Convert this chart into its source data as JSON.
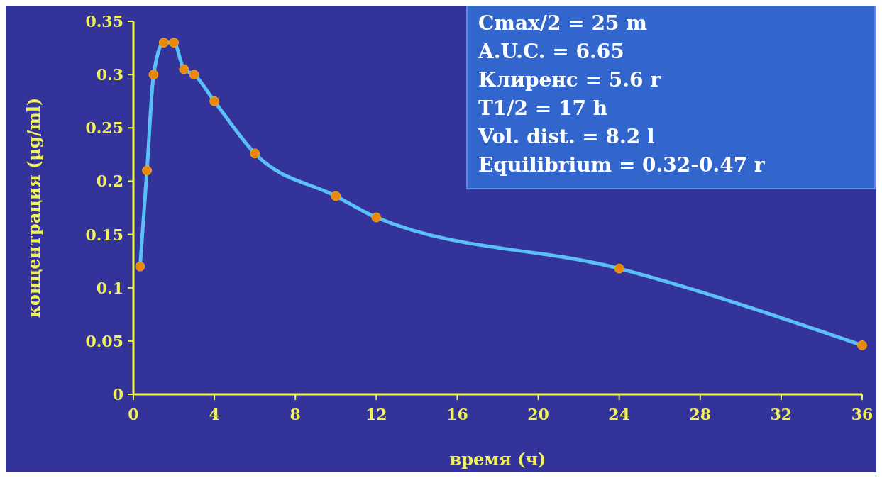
{
  "chart_data": {
    "type": "line",
    "xlabel": "время (ч)",
    "ylabel": "концентрация (µg/ml)",
    "x": [
      0.33,
      0.67,
      1,
      1.5,
      2,
      2.5,
      3,
      4,
      6,
      10,
      12,
      24,
      36
    ],
    "series": [
      {
        "color": "#5bc0f8",
        "values": [
          0.12,
          0.21,
          0.3,
          0.33,
          0.33,
          0.305,
          0.3,
          0.275,
          0.226,
          0.186,
          0.166,
          0.118,
          0.046
        ]
      }
    ],
    "xlim": [
      0,
      36
    ],
    "xticks": [
      0,
      4,
      8,
      12,
      16,
      20,
      24,
      28,
      32,
      36
    ],
    "ylim": [
      0,
      0.35
    ],
    "yticks": [
      0,
      0.05,
      0.1,
      0.15,
      0.2,
      0.25,
      0.3,
      0.35
    ],
    "marker": "circle",
    "grid": false,
    "annotations": [
      "Cmax/2 = 25 m",
      "A.U.C. = 6.65",
      "Клиренс = 5.6 r",
      "T1/2 = 17 h",
      "Vol. dist. = 8.2 l",
      "Equilibrium = 0.32-0.47 r"
    ]
  }
}
